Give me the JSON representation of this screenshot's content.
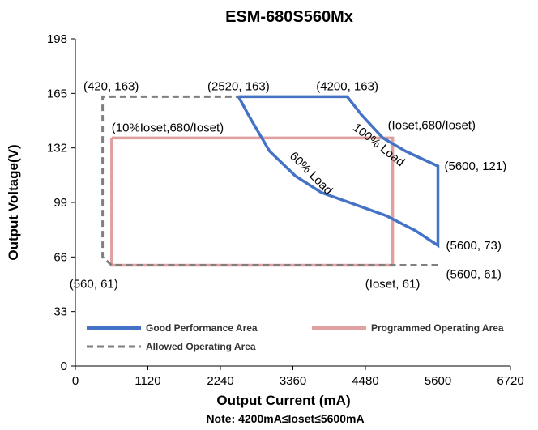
{
  "chart_data": {
    "type": "line",
    "title": "ESM-680S560Mx",
    "xlabel": "Output Current (mA)",
    "ylabel": "Output Voltage(V)",
    "note": "Note:  4200mA≤Ioset≤5600mA",
    "xlim": [
      0,
      6720
    ],
    "ylim": [
      0,
      198
    ],
    "xticks": [
      "0",
      "1120",
      "2240",
      "3360",
      "4480",
      "5600",
      "6720"
    ],
    "yticks": [
      "0",
      "33",
      "66",
      "99",
      "132",
      "165",
      "198"
    ],
    "grid": false,
    "legend_position": "bottom-inside",
    "series": [
      {
        "name": "Good Performance Area",
        "color": "#4472C4",
        "style": "solid",
        "points": [
          [
            2520,
            163
          ],
          [
            4200,
            163
          ],
          [
            4420,
            152
          ],
          [
            4750,
            138
          ],
          [
            5100,
            130
          ],
          [
            5600,
            121
          ],
          [
            5600,
            73
          ],
          [
            5250,
            82
          ],
          [
            4800,
            91
          ],
          [
            4300,
            98
          ],
          [
            3800,
            105
          ],
          [
            3400,
            115
          ],
          [
            3000,
            130
          ],
          [
            2700,
            150
          ],
          [
            2520,
            163
          ]
        ]
      },
      {
        "name": "Programmed Operating Area",
        "color": "#E0A0A0",
        "style": "solid",
        "points": [
          [
            560,
            138
          ],
          [
            4900,
            138
          ],
          [
            4900,
            61
          ],
          [
            560,
            61
          ],
          [
            560,
            138
          ]
        ]
      },
      {
        "name": "Allowed Operating Area",
        "color": "#7F7F7F",
        "style": "dashed",
        "points": [
          [
            5600,
            61
          ],
          [
            560,
            61
          ],
          [
            420,
            66
          ],
          [
            420,
            163
          ],
          [
            2520,
            163
          ]
        ]
      }
    ],
    "annotations": [
      {
        "text": "(420, 163)",
        "x": 0,
        "y": 163
      },
      {
        "text": "(2520, 163)",
        "x": 2520,
        "y": 163
      },
      {
        "text": "(4200, 163)",
        "x": 4200,
        "y": 163
      },
      {
        "text": "(10%Ioset,680/Ioset)",
        "x": 560,
        "y": 138
      },
      {
        "text": "(Ioset,680/Ioset)",
        "x": 4900,
        "y": 138
      },
      {
        "text": "100% Load",
        "x": 4650,
        "y": 132
      },
      {
        "text": "60% Load",
        "x": 3600,
        "y": 115
      },
      {
        "text": "(5600, 121)",
        "x": 5600,
        "y": 121
      },
      {
        "text": "(5600, 73)",
        "x": 5600,
        "y": 73
      },
      {
        "text": "(5600, 61)",
        "x": 5600,
        "y": 61
      },
      {
        "text": "(560, 61)",
        "x": 560,
        "y": 61
      },
      {
        "text": "(Ioset, 61)",
        "x": 4900,
        "y": 61
      }
    ]
  }
}
